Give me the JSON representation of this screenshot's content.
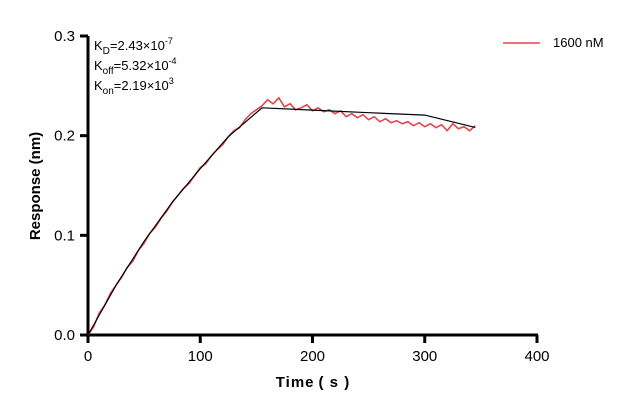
{
  "chart_data": {
    "type": "line",
    "xlabel": "Time ( s )",
    "ylabel": "Response (nm)",
    "xlim": [
      0,
      400
    ],
    "ylim": [
      0,
      0.3
    ],
    "xticks": [
      "0",
      "100",
      "200",
      "300",
      "400"
    ],
    "yticks": [
      "0.0",
      "0.1",
      "0.2",
      "0.3"
    ],
    "grid": false,
    "legend_position": "top-right",
    "annotations": [
      {
        "base": "K",
        "sub": "D",
        "text": "=2.43×10",
        "sup": "-7"
      },
      {
        "base": "K",
        "sub": "off",
        "text": "=5.32×10",
        "sup": "-4"
      },
      {
        "base": "K",
        "sub": "on",
        "text": "=2.19×10",
        "sup": "3"
      }
    ],
    "series": [
      {
        "name": "1600 nM",
        "color": "#e0474c",
        "x": [
          0,
          5,
          10,
          15,
          20,
          25,
          30,
          35,
          40,
          45,
          50,
          55,
          60,
          65,
          70,
          75,
          80,
          85,
          90,
          95,
          100,
          105,
          110,
          115,
          120,
          125,
          130,
          135,
          140,
          145,
          150,
          155,
          160,
          165,
          170,
          175,
          180,
          185,
          190,
          195,
          200,
          205,
          210,
          215,
          220,
          225,
          230,
          235,
          240,
          245,
          250,
          255,
          260,
          265,
          270,
          275,
          280,
          285,
          290,
          295,
          300,
          305,
          310,
          315,
          320,
          325,
          330,
          335,
          340,
          345
        ],
        "y": [
          0.0,
          0.008,
          0.022,
          0.03,
          0.042,
          0.05,
          0.058,
          0.068,
          0.074,
          0.085,
          0.092,
          0.102,
          0.108,
          0.117,
          0.124,
          0.133,
          0.14,
          0.147,
          0.152,
          0.16,
          0.168,
          0.172,
          0.18,
          0.186,
          0.191,
          0.199,
          0.205,
          0.208,
          0.216,
          0.222,
          0.226,
          0.23,
          0.236,
          0.232,
          0.238,
          0.229,
          0.232,
          0.226,
          0.228,
          0.231,
          0.225,
          0.228,
          0.224,
          0.226,
          0.222,
          0.225,
          0.219,
          0.222,
          0.218,
          0.221,
          0.216,
          0.219,
          0.214,
          0.217,
          0.213,
          0.215,
          0.212,
          0.214,
          0.21,
          0.213,
          0.209,
          0.212,
          0.208,
          0.211,
          0.205,
          0.212,
          0.207,
          0.209,
          0.205,
          0.21
        ]
      },
      {
        "color": "#000000",
        "x": [
          0,
          25,
          50,
          75,
          100,
          125,
          155,
          200,
          250,
          300,
          345
        ],
        "y": [
          0,
          0.05,
          0.094,
          0.133,
          0.167,
          0.199,
          0.228,
          0.2257,
          0.223,
          0.2206,
          0.2083
        ]
      }
    ]
  }
}
